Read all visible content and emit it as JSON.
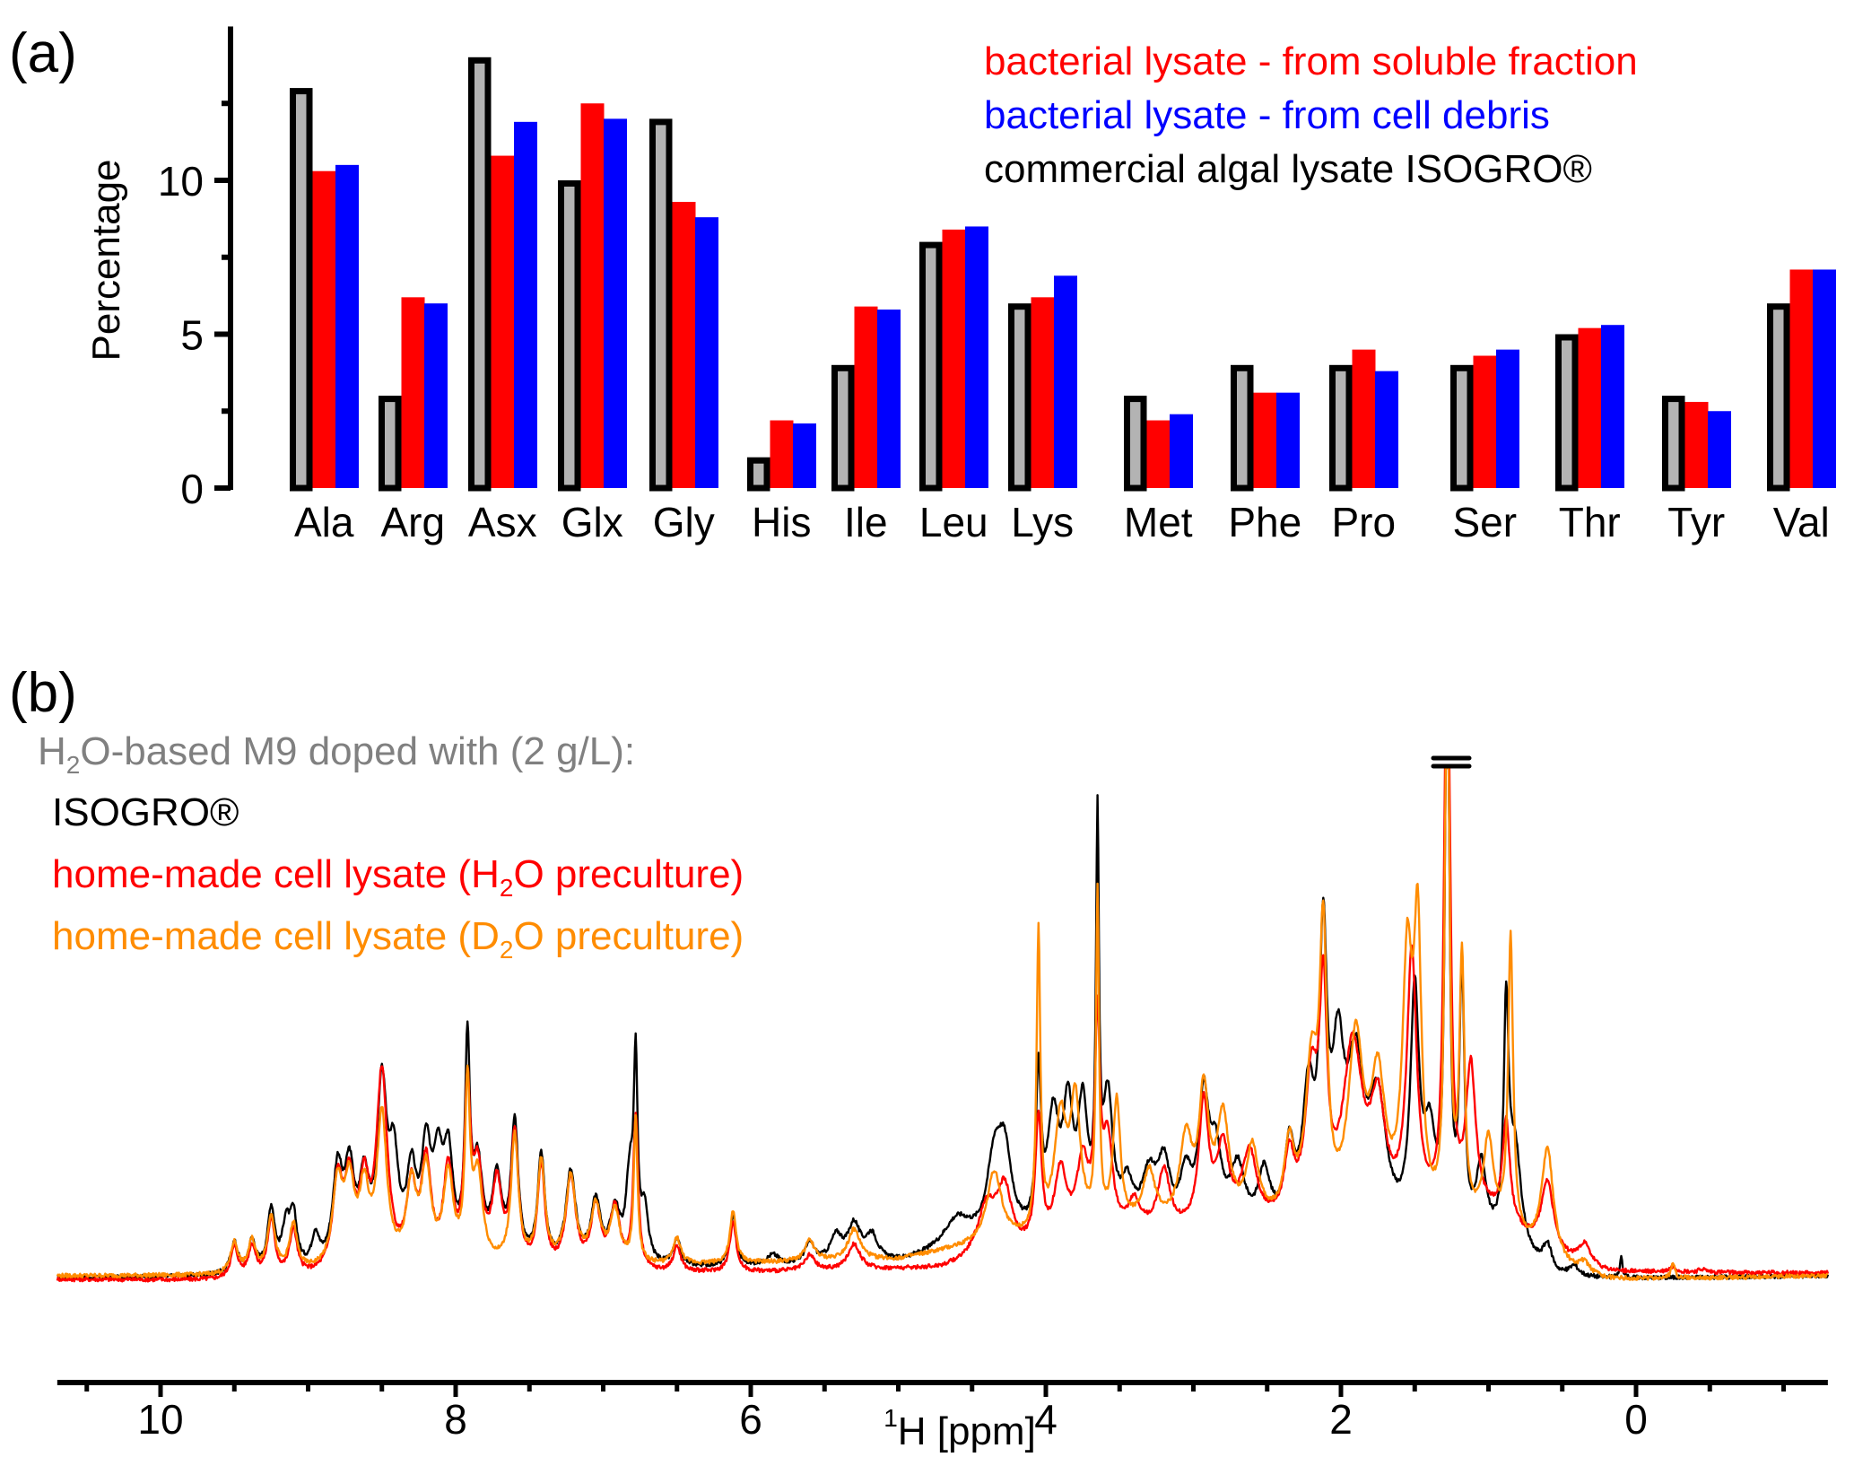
{
  "chart_data": [
    {
      "panel": "(a)",
      "type": "bar",
      "title": "",
      "xlabel": "",
      "ylabel": "Percentage",
      "ylim": [
        0,
        15
      ],
      "yticks": [
        0,
        5,
        10
      ],
      "yminor_ticks": [
        2.5,
        7.5,
        12.5
      ],
      "grid": false,
      "legend_position": "top-right",
      "categories": [
        "Ala",
        "Arg",
        "Asx",
        "Glx",
        "Gly",
        "His",
        "Ile",
        "Leu",
        "Lys",
        "Met",
        "Phe",
        "Pro",
        "Ser",
        "Thr",
        "Tyr",
        "Val"
      ],
      "series": [
        {
          "name": "commercial algal lysate ISOGRO®",
          "color": "#b3b3b3",
          "edge_color": "#000000",
          "values": [
            13.0,
            3.0,
            14.0,
            10.0,
            12.0,
            1.0,
            4.0,
            8.0,
            6.0,
            3.0,
            4.0,
            4.0,
            4.0,
            5.0,
            3.0,
            6.0
          ]
        },
        {
          "name": "bacterial lysate - from soluble fraction",
          "color": "#ff0000",
          "values": [
            10.3,
            6.2,
            10.8,
            12.5,
            9.3,
            2.2,
            5.9,
            8.4,
            6.2,
            2.2,
            3.1,
            4.5,
            4.3,
            5.2,
            2.8,
            7.1
          ]
        },
        {
          "name": "bacterial lysate - from cell debris",
          "color": "#0000ff",
          "values": [
            10.5,
            6.0,
            11.9,
            12.0,
            8.8,
            2.1,
            5.8,
            8.5,
            6.9,
            2.4,
            3.1,
            3.8,
            4.5,
            5.3,
            2.5,
            7.1
          ]
        }
      ],
      "legend": [
        {
          "text": "bacterial lysate - from soluble fraction",
          "color": "#ff0000"
        },
        {
          "text": "bacterial lysate - from cell debris",
          "color": "#0000ff"
        },
        {
          "text": "commercial algal lysate ISOGRO®",
          "color": "#000000"
        }
      ]
    },
    {
      "panel": "(b)",
      "type": "line",
      "title": "",
      "xlabel_sup": "1",
      "xlabel_main": "H [ppm]",
      "xlabel": "1H [ppm]",
      "ylabel": "",
      "xlim": [
        10.7,
        -1.3
      ],
      "xticks": [
        10,
        8,
        6,
        4,
        2,
        0
      ],
      "xminor_step": 0.5,
      "yaxis_units": "relative intensity (0 = baseline, 100 = clipped top)",
      "ylim": [
        -2,
        100
      ],
      "clipped_peak_ppm": 1.28,
      "grid": false,
      "legend_header": {
        "prefix": "H",
        "sub": "2",
        "suffix": "O-based M9 doped with (2 g/L):",
        "color": "#808080"
      },
      "legend": [
        {
          "parts": [
            {
              "t": "ISOGRO®"
            }
          ],
          "color": "#000000"
        },
        {
          "parts": [
            {
              "t": "home-made cell lysate (H"
            },
            {
              "sub": "2"
            },
            {
              "t": "O preculture)"
            }
          ],
          "color": "#ff0000"
        },
        {
          "parts": [
            {
              "t": "home-made cell lysate (D"
            },
            {
              "sub": "2"
            },
            {
              "t": "O preculture)"
            }
          ],
          "color": "#ff8c00"
        }
      ],
      "series": [
        {
          "name": "ISOGRO®",
          "color": "#000000",
          "baseline": [
            [
              10.7,
              0.5
            ],
            [
              9.6,
              0.8
            ],
            [
              5.0,
              3
            ],
            [
              4.6,
              5
            ],
            [
              3.4,
              8
            ],
            [
              1.0,
              6
            ],
            [
              0.55,
              0
            ],
            [
              -1.3,
              1
            ]
          ],
          "peaks": [
            [
              9.5,
              6,
              0.03
            ],
            [
              9.38,
              6,
              0.03
            ],
            [
              9.25,
              12,
              0.03
            ],
            [
              9.15,
              8,
              0.03
            ],
            [
              9.1,
              10,
              0.03
            ],
            [
              8.95,
              6,
              0.03
            ],
            [
              8.8,
              18,
              0.04
            ],
            [
              8.72,
              17,
              0.04
            ],
            [
              8.62,
              15,
              0.04
            ],
            [
              8.5,
              33,
              0.04
            ],
            [
              8.42,
              18,
              0.04
            ],
            [
              8.3,
              16,
              0.04
            ],
            [
              8.2,
              20,
              0.04
            ],
            [
              8.12,
              17,
              0.04
            ],
            [
              8.05,
              19,
              0.04
            ],
            [
              7.92,
              40,
              0.02
            ],
            [
              7.85,
              18,
              0.04
            ],
            [
              7.72,
              16,
              0.04
            ],
            [
              7.6,
              27,
              0.03
            ],
            [
              7.42,
              21,
              0.03
            ],
            [
              7.22,
              18,
              0.04
            ],
            [
              7.05,
              12,
              0.04
            ],
            [
              6.92,
              10,
              0.04
            ],
            [
              6.82,
              16,
              0.03
            ],
            [
              6.78,
              37,
              0.015
            ],
            [
              6.72,
              10,
              0.03
            ],
            [
              6.5,
              5,
              0.03
            ],
            [
              6.12,
              10,
              0.025
            ],
            [
              5.85,
              2,
              0.05
            ],
            [
              5.6,
              4,
              0.04
            ],
            [
              5.42,
              5,
              0.05
            ],
            [
              5.3,
              7,
              0.05
            ],
            [
              5.18,
              5,
              0.05
            ],
            [
              4.6,
              6,
              0.12
            ],
            [
              4.35,
              14,
              0.06
            ],
            [
              4.28,
              16,
              0.06
            ],
            [
              4.05,
              30,
              0.02
            ],
            [
              3.95,
              22,
              0.05
            ],
            [
              3.85,
              22,
              0.04
            ],
            [
              3.75,
              23,
              0.04
            ],
            [
              3.65,
              75,
              0.012
            ],
            [
              3.58,
              25,
              0.04
            ],
            [
              3.45,
              8,
              0.05
            ],
            [
              3.3,
              10,
              0.06
            ],
            [
              3.2,
              12,
              0.05
            ],
            [
              3.05,
              10,
              0.05
            ],
            [
              2.93,
              24,
              0.04
            ],
            [
              2.85,
              14,
              0.05
            ],
            [
              2.7,
              12,
              0.06
            ],
            [
              2.52,
              11,
              0.05
            ],
            [
              2.35,
              15,
              0.04
            ],
            [
              2.22,
              25,
              0.05
            ],
            [
              2.12,
              52,
              0.03
            ],
            [
              2.02,
              30,
              0.05
            ],
            [
              1.9,
              30,
              0.07
            ],
            [
              1.75,
              24,
              0.07
            ],
            [
              1.5,
              45,
              0.035
            ],
            [
              1.4,
              18,
              0.05
            ],
            [
              1.28,
              140,
              0.015
            ],
            [
              1.18,
              50,
              0.02
            ],
            [
              1.05,
              14,
              0.04
            ],
            [
              0.88,
              44,
              0.02
            ],
            [
              0.82,
              20,
              0.05
            ],
            [
              0.6,
              5,
              0.04
            ],
            [
              0.42,
              2,
              0.04
            ],
            [
              0.1,
              4,
              0.01
            ]
          ]
        },
        {
          "name": "home-made cell lysate (H2O preculture)",
          "color": "#ff0000",
          "baseline": [
            [
              10.7,
              0.3
            ],
            [
              9.6,
              0
            ],
            [
              5.0,
              2
            ],
            [
              4.7,
              2
            ],
            [
              3.4,
              8
            ],
            [
              1.0,
              12
            ],
            [
              0.55,
              4
            ],
            [
              0.2,
              1.5
            ],
            [
              -1.3,
              1.5
            ]
          ],
          "peaks": [
            [
              9.5,
              6,
              0.03
            ],
            [
              9.38,
              6,
              0.03
            ],
            [
              9.25,
              11,
              0.03
            ],
            [
              9.1,
              9,
              0.03
            ],
            [
              8.8,
              17,
              0.04
            ],
            [
              8.72,
              16,
              0.04
            ],
            [
              8.62,
              15,
              0.04
            ],
            [
              8.5,
              38,
              0.045
            ],
            [
              8.3,
              15,
              0.04
            ],
            [
              8.2,
              20,
              0.04
            ],
            [
              8.05,
              19,
              0.04
            ],
            [
              7.92,
              33,
              0.025
            ],
            [
              7.85,
              18,
              0.04
            ],
            [
              7.72,
              16,
              0.04
            ],
            [
              7.6,
              26,
              0.03
            ],
            [
              7.42,
              20,
              0.03
            ],
            [
              7.22,
              18,
              0.04
            ],
            [
              7.05,
              12,
              0.04
            ],
            [
              6.92,
              12,
              0.04
            ],
            [
              6.78,
              30,
              0.02
            ],
            [
              6.5,
              5,
              0.03
            ],
            [
              6.12,
              10,
              0.025
            ],
            [
              5.6,
              3,
              0.04
            ],
            [
              5.3,
              5,
              0.05
            ],
            [
              4.4,
              10,
              0.08
            ],
            [
              4.28,
              12,
              0.06
            ],
            [
              4.05,
              25,
              0.025
            ],
            [
              3.9,
              14,
              0.05
            ],
            [
              3.75,
              15,
              0.05
            ],
            [
              3.65,
              40,
              0.02
            ],
            [
              3.58,
              18,
              0.04
            ],
            [
              3.4,
              6,
              0.05
            ],
            [
              3.2,
              12,
              0.05
            ],
            [
              2.93,
              24,
              0.04
            ],
            [
              2.8,
              15,
              0.05
            ],
            [
              2.62,
              14,
              0.06
            ],
            [
              2.35,
              12,
              0.04
            ],
            [
              2.2,
              26,
              0.05
            ],
            [
              2.12,
              40,
              0.03
            ],
            [
              1.92,
              33,
              0.08
            ],
            [
              1.75,
              20,
              0.06
            ],
            [
              1.52,
              50,
              0.04
            ],
            [
              1.28,
              140,
              0.02
            ],
            [
              1.12,
              28,
              0.04
            ],
            [
              0.88,
              20,
              0.03
            ],
            [
              0.6,
              14,
              0.05
            ],
            [
              0.35,
              4,
              0.05
            ],
            [
              -0.25,
              1,
              0.03
            ],
            [
              -0.45,
              0.6,
              0.03
            ]
          ]
        },
        {
          "name": "home-made cell lysate (D2O preculture)",
          "color": "#ff8c00",
          "baseline": [
            [
              10.7,
              1
            ],
            [
              9.6,
              1
            ],
            [
              5.0,
              4
            ],
            [
              4.6,
              6
            ],
            [
              3.4,
              10
            ],
            [
              1.0,
              10
            ],
            [
              0.55,
              2
            ],
            [
              0.2,
              0
            ],
            [
              -1.3,
              1
            ]
          ],
          "peaks": [
            [
              9.5,
              6,
              0.03
            ],
            [
              9.38,
              6,
              0.03
            ],
            [
              9.25,
              11,
              0.03
            ],
            [
              9.1,
              9,
              0.03
            ],
            [
              8.8,
              16,
              0.04
            ],
            [
              8.72,
              15,
              0.04
            ],
            [
              8.62,
              14,
              0.04
            ],
            [
              8.5,
              29,
              0.04
            ],
            [
              8.3,
              15,
              0.04
            ],
            [
              8.2,
              18,
              0.04
            ],
            [
              8.05,
              17,
              0.04
            ],
            [
              7.92,
              33,
              0.02
            ],
            [
              7.85,
              17,
              0.04
            ],
            [
              7.6,
              25,
              0.03
            ],
            [
              7.42,
              20,
              0.03
            ],
            [
              7.22,
              17,
              0.04
            ],
            [
              7.05,
              11,
              0.04
            ],
            [
              6.92,
              10,
              0.04
            ],
            [
              6.78,
              28,
              0.015
            ],
            [
              6.5,
              5,
              0.03
            ],
            [
              6.12,
              10,
              0.025
            ],
            [
              5.6,
              4,
              0.04
            ],
            [
              5.3,
              6,
              0.05
            ],
            [
              4.35,
              14,
              0.06
            ],
            [
              4.05,
              58,
              0.015
            ],
            [
              3.9,
              22,
              0.05
            ],
            [
              3.8,
              24,
              0.04
            ],
            [
              3.65,
              64,
              0.012
            ],
            [
              3.52,
              24,
              0.03
            ],
            [
              3.3,
              10,
              0.05
            ],
            [
              3.05,
              16,
              0.05
            ],
            [
              2.93,
              24,
              0.04
            ],
            [
              2.8,
              20,
              0.05
            ],
            [
              2.6,
              14,
              0.05
            ],
            [
              2.35,
              14,
              0.04
            ],
            [
              2.2,
              28,
              0.05
            ],
            [
              2.12,
              52,
              0.03
            ],
            [
              1.9,
              34,
              0.06
            ],
            [
              1.75,
              26,
              0.06
            ],
            [
              1.55,
              48,
              0.04
            ],
            [
              1.48,
              52,
              0.03
            ],
            [
              1.28,
              140,
              0.015
            ],
            [
              1.18,
              50,
              0.02
            ],
            [
              1.0,
              16,
              0.04
            ],
            [
              0.85,
              58,
              0.02
            ],
            [
              0.6,
              22,
              0.05
            ],
            [
              0.35,
              2,
              0.04
            ],
            [
              -0.25,
              3,
              0.015
            ]
          ]
        }
      ]
    }
  ],
  "panels": {
    "a_label": "(a)",
    "b_label": "(b)"
  }
}
